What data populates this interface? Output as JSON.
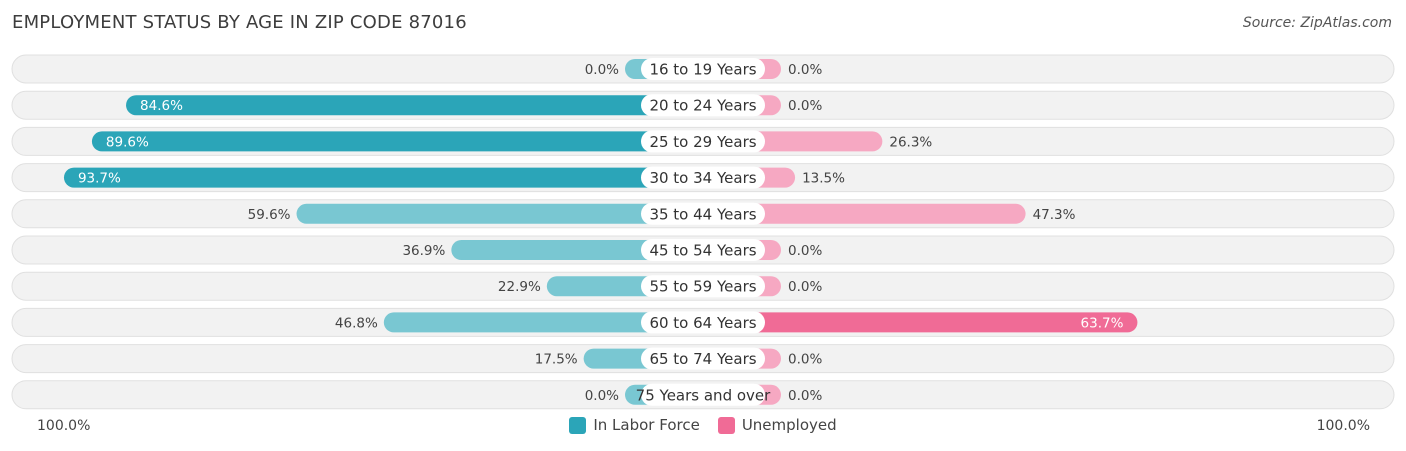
{
  "title": "EMPLOYMENT STATUS BY AGE IN ZIP CODE 87016",
  "source": "Source: ZipAtlas.com",
  "legend": {
    "labor_label": "In Labor Force",
    "unemployed_label": "Unemployed"
  },
  "axis": {
    "left_label": "100.0%",
    "right_label": "100.0%"
  },
  "colors": {
    "labor_strong": "#2ba5b8",
    "labor_light": "#79c7d2",
    "unemp_strong": "#f06b96",
    "unemp_light": "#f6a8c2",
    "row_bg": "#f2f2f2",
    "row_border": "#e0e0e0"
  },
  "chart_data": {
    "type": "bar",
    "orientation": "diverging-horizontal",
    "categories": [
      "16 to 19 Years",
      "20 to 24 Years",
      "25 to 29 Years",
      "30 to 34 Years",
      "35 to 44 Years",
      "45 to 54 Years",
      "55 to 59 Years",
      "60 to 64 Years",
      "65 to 74 Years",
      "75 Years and over"
    ],
    "series": [
      {
        "name": "In Labor Force",
        "values": [
          0.0,
          84.6,
          89.6,
          93.7,
          59.6,
          36.9,
          22.9,
          46.8,
          17.5,
          0.0
        ]
      },
      {
        "name": "Unemployed",
        "values": [
          0.0,
          0.0,
          26.3,
          13.5,
          47.3,
          0.0,
          0.0,
          63.7,
          0.0,
          0.0
        ]
      }
    ],
    "value_labels": {
      "In Labor Force": [
        "0.0%",
        "84.6%",
        "89.6%",
        "93.7%",
        "59.6%",
        "36.9%",
        "22.9%",
        "46.8%",
        "17.5%",
        "0.0%"
      ],
      "Unemployed": [
        "0.0%",
        "0.0%",
        "26.3%",
        "13.5%",
        "47.3%",
        "0.0%",
        "0.0%",
        "63.7%",
        "0.0%",
        "0.0%"
      ]
    },
    "xlim": [
      0,
      100
    ],
    "legend_position": "bottom-center"
  }
}
